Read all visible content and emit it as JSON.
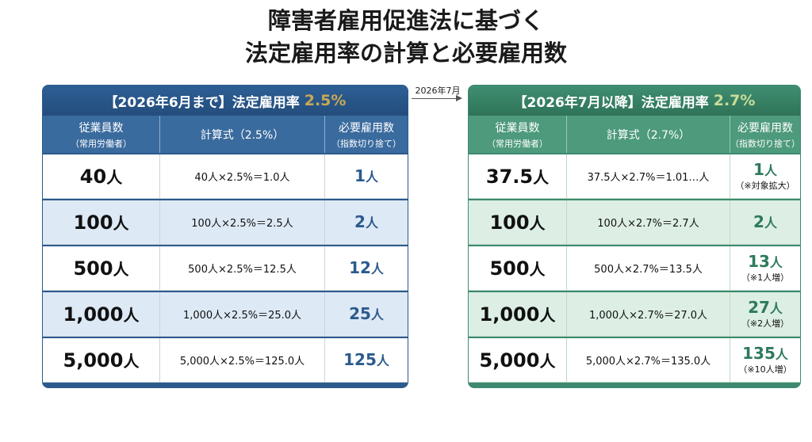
{
  "title": {
    "line1": "障害者雇用促進法に基づく",
    "line2": "法定雇用率の計算と必要雇用数"
  },
  "transition": {
    "label": "2026年7月"
  },
  "left": {
    "header_text": "【2026年6月まで】法定雇用率",
    "rate": "2.5%",
    "columns": {
      "employees": "従業員数",
      "employees_sub": "（常用労働者）",
      "formula": "計算式（2.5%）",
      "required": "必要雇用数",
      "required_sub": "（指数切り捨て）"
    },
    "rows": [
      {
        "employees": "40",
        "unit": "人",
        "formula": "40人×2.5%＝1.0人",
        "required": "1",
        "req_unit": "人",
        "note": ""
      },
      {
        "employees": "100",
        "unit": "人",
        "formula": "100人×2.5%＝2.5人",
        "required": "2",
        "req_unit": "人",
        "note": ""
      },
      {
        "employees": "500",
        "unit": "人",
        "formula": "500人×2.5%＝12.5人",
        "required": "12",
        "req_unit": "人",
        "note": ""
      },
      {
        "employees": "1,000",
        "unit": "人",
        "formula": "1,000人×2.5%＝25.0人",
        "required": "25",
        "req_unit": "人",
        "note": ""
      },
      {
        "employees": "5,000",
        "unit": "人",
        "formula": "5,000人×2.5%＝125.0人",
        "required": "125",
        "req_unit": "人",
        "note": ""
      }
    ]
  },
  "right": {
    "header_text": "【2026年7月以降】法定雇用率",
    "rate": "2.7%",
    "columns": {
      "employees": "従業員数",
      "employees_sub": "（常用労働者）",
      "formula": "計算式（2.7%）",
      "required": "必要雇用数",
      "required_sub": "（指数切り捨て）"
    },
    "rows": [
      {
        "employees": "37.5",
        "unit": "人",
        "formula": "37.5人×2.7%＝1.01…人",
        "required": "1",
        "req_unit": "人",
        "note": "（※対象拡大）"
      },
      {
        "employees": "100",
        "unit": "人",
        "formula": "100人×2.7%＝2.7人",
        "required": "2",
        "req_unit": "人",
        "note": ""
      },
      {
        "employees": "500",
        "unit": "人",
        "formula": "500人×2.7%＝13.5人",
        "required": "13",
        "req_unit": "人",
        "note": "（※1人増）"
      },
      {
        "employees": "1,000",
        "unit": "人",
        "formula": "1,000人×2.7%＝27.0人",
        "required": "27",
        "req_unit": "人",
        "note": "（※2人増）"
      },
      {
        "employees": "5,000",
        "unit": "人",
        "formula": "5,000人×2.7%＝135.0人",
        "required": "135",
        "req_unit": "人",
        "note": "（※10人増）"
      }
    ]
  }
}
